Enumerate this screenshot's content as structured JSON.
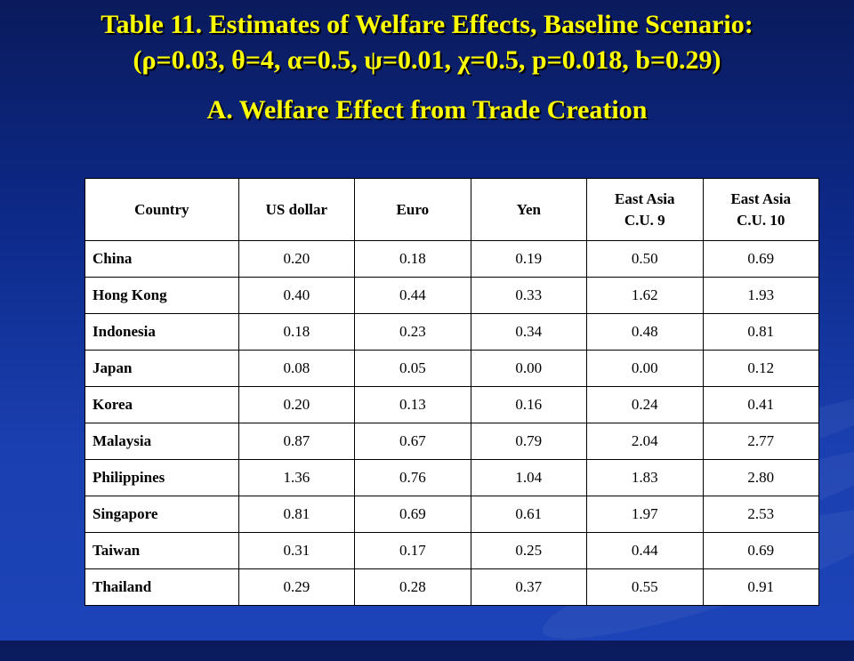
{
  "title_line1": "Table 11. Estimates of Welfare Effects, Baseline Scenario:",
  "title_line2": "(ρ=0.03, θ=4, α=0.5, ψ=0.01, χ=0.5, p=0.018, b=0.29)",
  "subtitle": "A. Welfare Effect from Trade Creation",
  "table": {
    "headers": [
      [
        "Country"
      ],
      [
        "US dollar"
      ],
      [
        "Euro"
      ],
      [
        "Yen"
      ],
      [
        "East Asia",
        "C.U. 9"
      ],
      [
        "East Asia",
        "C.U. 10"
      ]
    ],
    "rows": [
      [
        "China",
        "0.20",
        "0.18",
        "0.19",
        "0.50",
        "0.69"
      ],
      [
        "Hong Kong",
        "0.40",
        "0.44",
        "0.33",
        "1.62",
        "1.93"
      ],
      [
        "Indonesia",
        "0.18",
        "0.23",
        "0.34",
        "0.48",
        "0.81"
      ],
      [
        "Japan",
        "0.08",
        "0.05",
        "0.00",
        "0.00",
        "0.12"
      ],
      [
        "Korea",
        "0.20",
        "0.13",
        "0.16",
        "0.24",
        "0.41"
      ],
      [
        "Malaysia",
        "0.87",
        "0.67",
        "0.79",
        "2.04",
        "2.77"
      ],
      [
        "Philippines",
        "1.36",
        "0.76",
        "1.04",
        "1.83",
        "2.80"
      ],
      [
        "Singapore",
        "0.81",
        "0.69",
        "0.61",
        "1.97",
        "2.53"
      ],
      [
        "Taiwan",
        "0.31",
        "0.17",
        "0.25",
        "0.44",
        "0.69"
      ],
      [
        "Thailand",
        "0.29",
        "0.28",
        "0.37",
        "0.55",
        "0.91"
      ]
    ]
  }
}
